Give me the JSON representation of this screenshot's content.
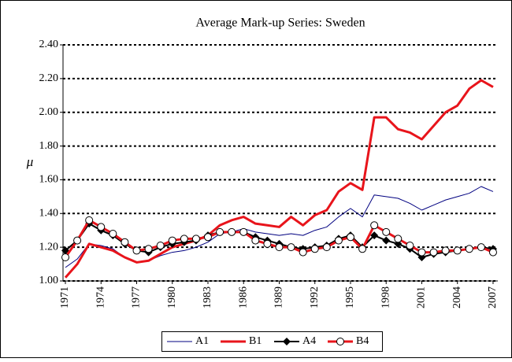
{
  "chart_data": {
    "type": "line",
    "title": "Average Mark-up Series: Sweden",
    "y_label": "μ",
    "x": [
      1971,
      1972,
      1973,
      1974,
      1975,
      1976,
      1977,
      1978,
      1979,
      1980,
      1981,
      1982,
      1983,
      1984,
      1985,
      1986,
      1987,
      1988,
      1989,
      1990,
      1991,
      1992,
      1993,
      1994,
      1995,
      1996,
      1997,
      1998,
      1999,
      2000,
      2001,
      2002,
      2003,
      2004,
      2005,
      2006,
      2007
    ],
    "xlim": [
      1970.8,
      2007.4
    ],
    "xticks": [
      1971,
      1974,
      1977,
      1980,
      1983,
      1986,
      1989,
      1992,
      1995,
      1998,
      2001,
      2004,
      2007
    ],
    "ylim": [
      1,
      2.4
    ],
    "yticks": [
      {
        "value": 1,
        "label": "1.00"
      },
      {
        "value": 1.2,
        "label": "1.20"
      },
      {
        "value": 1.4,
        "label": "1.40"
      },
      {
        "value": 1.6,
        "label": "1.60"
      },
      {
        "value": 1.8,
        "label": "1.80"
      },
      {
        "value": 2,
        "label": "2.00"
      },
      {
        "value": 2.2,
        "label": "2.20"
      },
      {
        "value": 2.4,
        "label": "2.40"
      }
    ],
    "grid": true,
    "legend": "bottom",
    "series": [
      {
        "name": "A1",
        "color": "#000080",
        "line_width": 1,
        "marker": null,
        "values": [
          1.08,
          1.13,
          1.22,
          1.21,
          1.19,
          1.14,
          1.11,
          1.12,
          1.15,
          1.17,
          1.18,
          1.2,
          1.23,
          1.28,
          1.29,
          1.31,
          1.29,
          1.28,
          1.27,
          1.28,
          1.27,
          1.3,
          1.32,
          1.38,
          1.43,
          1.38,
          1.51,
          1.5,
          1.49,
          1.46,
          1.42,
          1.45,
          1.48,
          1.5,
          1.52,
          1.56,
          1.53
        ]
      },
      {
        "name": "B1",
        "color": "#e8141b",
        "line_width": 3,
        "marker": null,
        "values": [
          1.02,
          1.1,
          1.22,
          1.2,
          1.18,
          1.14,
          1.11,
          1.12,
          1.16,
          1.2,
          1.22,
          1.24,
          1.27,
          1.33,
          1.36,
          1.38,
          1.34,
          1.33,
          1.32,
          1.38,
          1.33,
          1.39,
          1.42,
          1.53,
          1.58,
          1.54,
          1.97,
          1.97,
          1.9,
          1.88,
          1.84,
          1.92,
          2,
          2.04,
          2.14,
          2.19,
          2.15
        ]
      },
      {
        "name": "A4",
        "color": "#000000",
        "line_width": 2,
        "marker": "diamond",
        "values": [
          1.18,
          1.24,
          1.34,
          1.3,
          1.27,
          1.22,
          1.18,
          1.17,
          1.2,
          1.22,
          1.23,
          1.24,
          1.27,
          1.29,
          1.29,
          1.29,
          1.26,
          1.24,
          1.22,
          1.2,
          1.19,
          1.2,
          1.21,
          1.25,
          1.27,
          1.2,
          1.27,
          1.24,
          1.22,
          1.19,
          1.14,
          1.16,
          1.17,
          1.18,
          1.19,
          1.2,
          1.19
        ]
      },
      {
        "name": "B4",
        "color": "#e8141b",
        "line_width": 3,
        "marker": "circle",
        "values": [
          1.14,
          1.24,
          1.36,
          1.32,
          1.28,
          1.23,
          1.18,
          1.19,
          1.21,
          1.24,
          1.25,
          1.25,
          1.26,
          1.29,
          1.29,
          1.29,
          1.24,
          1.22,
          1.2,
          1.2,
          1.17,
          1.19,
          1.2,
          1.24,
          1.26,
          1.19,
          1.33,
          1.29,
          1.25,
          1.21,
          1.17,
          1.17,
          1.18,
          1.18,
          1.19,
          1.2,
          1.17
        ]
      }
    ]
  }
}
